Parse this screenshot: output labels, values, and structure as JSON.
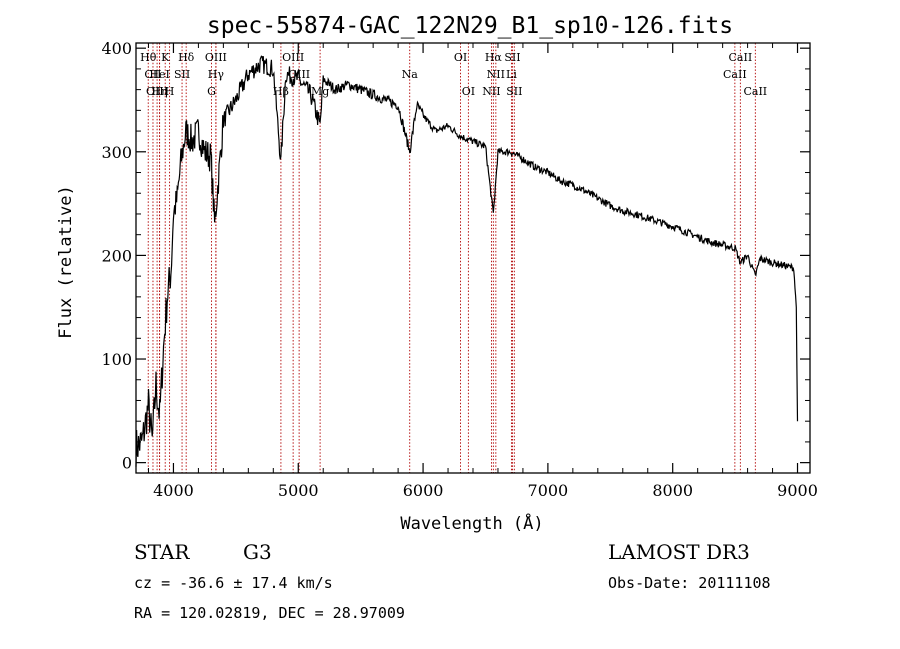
{
  "chart_data": {
    "type": "line",
    "title": "spec-55874-GAC_122N29_B1_sp10-126.fits",
    "xlabel": "Wavelength (Å)",
    "ylabel": "Flux (relative)",
    "xlim": [
      3700,
      9100
    ],
    "ylim": [
      -10,
      405
    ],
    "xticks": [
      4000,
      5000,
      6000,
      7000,
      8000,
      9000
    ],
    "yticks": [
      0,
      100,
      200,
      300,
      400
    ],
    "series": [
      {
        "name": "flux",
        "x": [
          3700,
          3750,
          3800,
          3830,
          3860,
          3890,
          3920,
          3950,
          3980,
          4000,
          4030,
          4060,
          4100,
          4150,
          4200,
          4250,
          4300,
          4330,
          4400,
          4500,
          4600,
          4700,
          4800,
          4861,
          4900,
          5000,
          5100,
          5175,
          5200,
          5300,
          5400,
          5500,
          5600,
          5700,
          5800,
          5893,
          5950,
          6000,
          6100,
          6200,
          6300,
          6400,
          6500,
          6563,
          6600,
          6700,
          6800,
          6900,
          7000,
          7100,
          7200,
          7300,
          7400,
          7500,
          7600,
          7700,
          7800,
          7900,
          8000,
          8100,
          8200,
          8300,
          8400,
          8500,
          8542,
          8600,
          8662,
          8700,
          8800,
          8900,
          8970,
          8990,
          9000
        ],
        "y": [
          15,
          20,
          55,
          20,
          75,
          45,
          110,
          160,
          185,
          240,
          255,
          290,
          320,
          310,
          320,
          300,
          295,
          230,
          330,
          350,
          375,
          385,
          380,
          290,
          375,
          370,
          355,
          325,
          370,
          360,
          365,
          360,
          355,
          350,
          345,
          300,
          345,
          335,
          320,
          325,
          315,
          310,
          305,
          240,
          300,
          300,
          293,
          285,
          280,
          272,
          268,
          262,
          255,
          248,
          243,
          240,
          236,
          232,
          228,
          223,
          218,
          213,
          210,
          207,
          193,
          200,
          180,
          197,
          193,
          190,
          188,
          150,
          40
        ]
      }
    ],
    "lines": [
      {
        "label": "Hθ",
        "wave": 3798,
        "row": 1
      },
      {
        "label": "CII",
        "wave": 3836,
        "row": 2
      },
      {
        "label": "OIII",
        "wave": 3869,
        "row": 3
      },
      {
        "label": "HeI",
        "wave": 3889,
        "row": 2
      },
      {
        "label": "Hη",
        "wave": 3889,
        "row": 3
      },
      {
        "label": "K",
        "wave": 3934,
        "row": 1
      },
      {
        "label": "H",
        "wave": 3969,
        "row": 3
      },
      {
        "label": "SII",
        "wave": 4069,
        "row": 2
      },
      {
        "label": "Hδ",
        "wave": 4102,
        "row": 1
      },
      {
        "label": "G",
        "wave": 4305,
        "row": 3
      },
      {
        "label": "OIII",
        "wave": 4340,
        "row": 1
      },
      {
        "label": "Hγ",
        "wave": 4340,
        "row": 2
      },
      {
        "label": "Hβ",
        "wave": 4861,
        "row": 3
      },
      {
        "label": "OIII",
        "wave": 4959,
        "row": 1
      },
      {
        "label": "OIII",
        "wave": 5007,
        "row": 2
      },
      {
        "label": "Mg",
        "wave": 5175,
        "row": 3
      },
      {
        "label": "Na",
        "wave": 5893,
        "row": 2
      },
      {
        "label": "OI",
        "wave": 6300,
        "row": 1
      },
      {
        "label": "OI",
        "wave": 6363,
        "row": 3
      },
      {
        "label": "Hα",
        "wave": 6563,
        "row": 1
      },
      {
        "label": "NII",
        "wave": 6583,
        "row": 2
      },
      {
        "label": "NII",
        "wave": 6548,
        "row": 3
      },
      {
        "label": "SII",
        "wave": 6716,
        "row": 1
      },
      {
        "label": "Li",
        "wave": 6708,
        "row": 2
      },
      {
        "label": "SII",
        "wave": 6731,
        "row": 3
      },
      {
        "label": "CaII",
        "wave": 8498,
        "row": 2
      },
      {
        "label": "CaII",
        "wave": 8542,
        "row": 1
      },
      {
        "label": "CaII",
        "wave": 8662,
        "row": 3
      }
    ]
  },
  "info": {
    "object_class": "STAR",
    "subclass": "G3",
    "cz": "cz = -36.6 ± 17.4 km/s",
    "coords": "RA = 120.02819, DEC =  28.97009",
    "survey": "LAMOST DR3",
    "obs_date": "Obs-Date: 20111108"
  },
  "colors": {
    "spectrum": "#000000",
    "line_marker": "#b00000",
    "axes": "#000000"
  }
}
